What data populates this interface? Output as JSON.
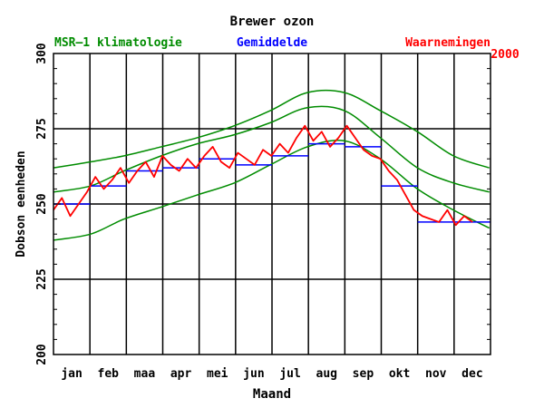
{
  "chart_data": {
    "type": "line",
    "title": "Brewer ozon",
    "xlabel": "Maand",
    "ylabel": "Dobson eenheden",
    "year": "2000",
    "ylim": [
      200,
      300
    ],
    "yticks": [
      200,
      225,
      250,
      275,
      300
    ],
    "months": [
      "jan",
      "feb",
      "maa",
      "apr",
      "mei",
      "jun",
      "jul",
      "aug",
      "sep",
      "okt",
      "nov",
      "dec"
    ],
    "legend": {
      "climatology": "MSR–1 klimatologie",
      "mean": "Gemiddelde",
      "observations": "Waarnemingen"
    },
    "colors": {
      "climatology": "#008c00",
      "mean": "#0000ff",
      "observations": "#ff0000",
      "axis": "#000000"
    },
    "series": [
      {
        "name": "MSR-1 klimatologie (gemiddelde)",
        "x_day": [
          1,
          32,
          60,
          91,
          121,
          152,
          182,
          213,
          244,
          274,
          305,
          335,
          365
        ],
        "values": [
          254,
          256,
          261,
          266,
          270,
          273,
          277,
          282,
          281,
          272,
          262,
          257,
          254
        ]
      },
      {
        "name": "MSR-1 klimatologie (+1 sd)",
        "x_day": [
          1,
          32,
          60,
          91,
          121,
          152,
          182,
          213,
          244,
          274,
          305,
          335,
          365
        ],
        "values": [
          262,
          264,
          266,
          269,
          272,
          276,
          281,
          287,
          287,
          281,
          274,
          266,
          262
        ]
      },
      {
        "name": "MSR-1 klimatologie (-1 sd)",
        "x_day": [
          1,
          32,
          60,
          91,
          121,
          152,
          182,
          213,
          244,
          274,
          305,
          335,
          365
        ],
        "values": [
          238,
          240,
          245,
          249,
          253,
          257,
          263,
          269,
          271,
          265,
          255,
          248,
          242
        ]
      },
      {
        "name": "Gemiddelde",
        "months": [
          "jan",
          "feb",
          "maa",
          "apr",
          "mei",
          "jun",
          "jul",
          "aug",
          "sep",
          "okt",
          "nov",
          "dec"
        ],
        "values": [
          250,
          256,
          261,
          262,
          265,
          263,
          266,
          270,
          269,
          256,
          244,
          244
        ]
      },
      {
        "name": "Waarnemingen",
        "x_day": [
          1,
          8,
          15,
          22,
          29,
          36,
          43,
          50,
          57,
          64,
          71,
          78,
          85,
          92,
          99,
          106,
          113,
          120,
          127,
          134,
          141,
          148,
          155,
          162,
          169,
          176,
          183,
          190,
          197,
          204,
          211,
          218,
          225,
          232,
          239,
          246,
          253,
          260,
          267,
          274,
          281,
          288,
          295,
          302,
          309,
          316,
          323,
          330,
          337,
          344,
          351
        ],
        "values": [
          248,
          252,
          246,
          250,
          254,
          259,
          255,
          258,
          262,
          257,
          261,
          264,
          259,
          266,
          263,
          261,
          265,
          262,
          266,
          269,
          264,
          262,
          267,
          265,
          263,
          268,
          266,
          270,
          267,
          272,
          276,
          271,
          274,
          269,
          272,
          276,
          272,
          268,
          266,
          265,
          261,
          258,
          253,
          248,
          246,
          245,
          244,
          248,
          243,
          246,
          244
        ]
      }
    ]
  }
}
